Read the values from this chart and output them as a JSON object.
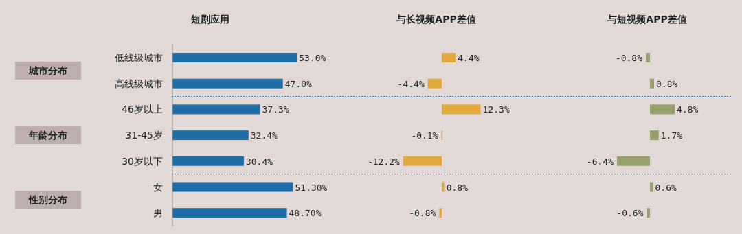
{
  "chart_data": [
    {
      "type": "bar",
      "orientation": "horizontal",
      "title": "短剧应用",
      "categories": [
        "低线级城市",
        "高线级城市",
        "46岁以上",
        "31-45岁",
        "30岁以下",
        "女",
        "男"
      ],
      "values": [
        53.0,
        47.0,
        37.3,
        32.4,
        30.4,
        51.3,
        48.7
      ],
      "color": "#1f6da6",
      "value_labels": [
        "53.0%",
        "47.0%",
        "37.3%",
        "32.4%",
        "30.4%",
        "51.30%",
        "48.70%"
      ],
      "annotations": [
        "城市分布",
        "年龄分布",
        "性别分布"
      ]
    },
    {
      "type": "bar",
      "orientation": "horizontal",
      "title": "与长视频APP差值",
      "categories": [
        null,
        null,
        null,
        null,
        null,
        null,
        null
      ],
      "values": [
        4.4,
        -4.4,
        12.3,
        -0.1,
        -12.2,
        0.8,
        -0.8
      ],
      "color": "#e2a93c",
      "value_labels": [
        "4.4%",
        "-4.4%",
        "12.3%",
        "-0.1%",
        "-12.2%",
        "0.8%",
        "-0.8%"
      ]
    },
    {
      "type": "bar",
      "orientation": "horizontal",
      "title": "与短视频APP差值",
      "categories": [
        null,
        null,
        null,
        null,
        null,
        null,
        null
      ],
      "values": [
        -0.8,
        0.8,
        4.8,
        1.7,
        -6.4,
        0.6,
        -0.6
      ],
      "color": "#96a06a",
      "value_labels": [
        "-0.8%",
        "0.8%",
        "4.8%",
        "1.7%",
        "-6.4%",
        "0.6%",
        "-0.6%"
      ]
    }
  ]
}
